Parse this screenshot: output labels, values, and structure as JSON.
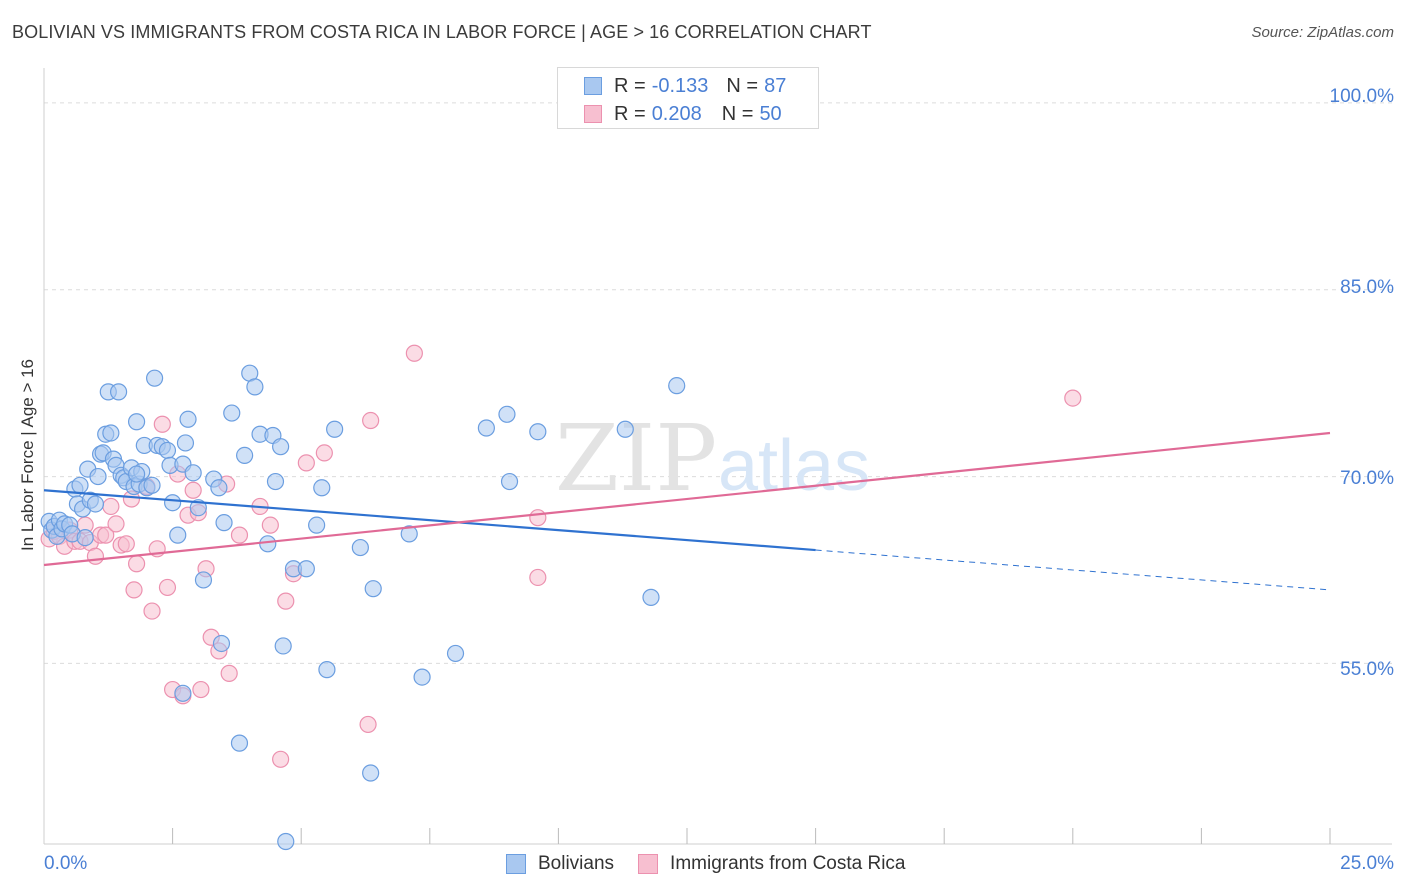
{
  "title": "BOLIVIAN VS IMMIGRANTS FROM COSTA RICA IN LABOR FORCE | AGE > 16 CORRELATION CHART",
  "source": "Source: ZipAtlas.com",
  "watermark": {
    "zip": "ZIP",
    "atlas": "atlas"
  },
  "legend": {
    "row1": {
      "r_label": "R =",
      "r_value": "-0.133",
      "n_label": "N =",
      "n_value": "87"
    },
    "row2": {
      "r_label": "R =",
      "r_value": "0.208",
      "n_label": "N =",
      "n_value": "50"
    }
  },
  "bottom_legend": {
    "s1": "Bolivians",
    "s2": "Immigrants from Costa Rica"
  },
  "colors": {
    "bolivians_fill": "#a9c8f0",
    "bolivians_stroke": "#6b9ee0",
    "bolivians_line": "#2f72d0",
    "costarica_fill": "#f7bfd0",
    "costarica_stroke": "#ec91af",
    "costarica_line": "#e06a96",
    "tick_text": "#4a7fd4",
    "grid": "#dcdcdc"
  },
  "chart_data": {
    "type": "scatter",
    "title": "BOLIVIAN VS IMMIGRANTS FROM COSTA RICA IN LABOR FORCE | AGE > 16 CORRELATION CHART",
    "xlabel": "",
    "ylabel": "In Labor Force | Age > 16",
    "xlim": [
      0,
      25
    ],
    "ylim": [
      40.5,
      102
    ],
    "x_tick_labels": [
      "0.0%",
      "25.0%"
    ],
    "y_ticks": [
      100,
      85,
      70,
      55
    ],
    "y_tick_labels": [
      "100.0%",
      "85.0%",
      "70.0%",
      "55.0%"
    ],
    "grid": true,
    "legend_placement": "top-center",
    "series": [
      {
        "name": "Bolivians",
        "r": -0.133,
        "n": 87,
        "trend": {
          "x0": 0,
          "y0": 68.9,
          "x1": 15,
          "y1": 64.1,
          "dash_x1": 25,
          "dash_y1": 60.9
        },
        "points": [
          [
            0.1,
            66.4
          ],
          [
            0.15,
            65.7
          ],
          [
            0.2,
            66.0
          ],
          [
            0.25,
            65.2
          ],
          [
            0.3,
            66.5
          ],
          [
            0.35,
            65.8
          ],
          [
            0.4,
            66.2
          ],
          [
            0.5,
            66.1
          ],
          [
            0.55,
            65.4
          ],
          [
            0.6,
            69.0
          ],
          [
            0.65,
            67.8
          ],
          [
            0.7,
            69.3
          ],
          [
            0.75,
            67.4
          ],
          [
            0.8,
            65.1
          ],
          [
            0.85,
            70.6
          ],
          [
            0.9,
            68.1
          ],
          [
            1.0,
            67.8
          ],
          [
            1.05,
            70.0
          ],
          [
            1.1,
            71.8
          ],
          [
            1.15,
            71.9
          ],
          [
            1.2,
            73.4
          ],
          [
            1.25,
            76.8
          ],
          [
            1.3,
            73.5
          ],
          [
            1.35,
            71.4
          ],
          [
            1.4,
            70.9
          ],
          [
            1.45,
            76.8
          ],
          [
            1.5,
            70.1
          ],
          [
            1.55,
            69.9
          ],
          [
            1.6,
            69.6
          ],
          [
            1.7,
            70.7
          ],
          [
            1.75,
            69.2
          ],
          [
            1.8,
            74.4
          ],
          [
            1.85,
            69.4
          ],
          [
            1.9,
            70.4
          ],
          [
            1.95,
            72.5
          ],
          [
            2.0,
            69.1
          ],
          [
            2.1,
            69.3
          ],
          [
            2.15,
            77.9
          ],
          [
            2.2,
            72.5
          ],
          [
            2.3,
            72.4
          ],
          [
            2.4,
            72.1
          ],
          [
            2.45,
            70.9
          ],
          [
            2.5,
            67.9
          ],
          [
            2.6,
            65.3
          ],
          [
            2.7,
            71.0
          ],
          [
            2.75,
            72.7
          ],
          [
            2.8,
            74.6
          ],
          [
            2.9,
            70.3
          ],
          [
            3.0,
            67.5
          ],
          [
            3.1,
            61.7
          ],
          [
            3.3,
            69.8
          ],
          [
            3.4,
            69.1
          ],
          [
            3.45,
            56.6
          ],
          [
            3.5,
            66.3
          ],
          [
            3.65,
            75.1
          ],
          [
            3.8,
            48.6
          ],
          [
            3.9,
            71.7
          ],
          [
            4.0,
            78.3
          ],
          [
            4.1,
            77.2
          ],
          [
            4.2,
            73.4
          ],
          [
            4.35,
            64.6
          ],
          [
            4.45,
            73.3
          ],
          [
            4.5,
            69.6
          ],
          [
            4.6,
            72.4
          ],
          [
            4.65,
            56.4
          ],
          [
            4.85,
            62.6
          ],
          [
            5.1,
            62.6
          ],
          [
            5.3,
            66.1
          ],
          [
            5.4,
            69.1
          ],
          [
            5.5,
            54.5
          ],
          [
            5.65,
            73.8
          ],
          [
            6.15,
            64.3
          ],
          [
            6.35,
            46.2
          ],
          [
            6.4,
            61.0
          ],
          [
            7.1,
            65.4
          ],
          [
            7.35,
            53.9
          ],
          [
            8.0,
            55.8
          ],
          [
            8.6,
            73.9
          ],
          [
            9.0,
            75.0
          ],
          [
            9.05,
            69.6
          ],
          [
            9.6,
            73.6
          ],
          [
            11.3,
            73.8
          ],
          [
            11.8,
            60.3
          ],
          [
            12.3,
            77.3
          ],
          [
            4.7,
            40.7
          ],
          [
            2.7,
            52.6
          ],
          [
            1.8,
            70.2
          ]
        ]
      },
      {
        "name": "Immigrants from Costa Rica",
        "r": 0.208,
        "n": 50,
        "trend": {
          "x0": 0,
          "y0": 62.9,
          "x1": 25,
          "y1": 73.5
        },
        "points": [
          [
            0.1,
            65.0
          ],
          [
            0.2,
            65.6
          ],
          [
            0.3,
            65.2
          ],
          [
            0.4,
            64.4
          ],
          [
            0.5,
            65.7
          ],
          [
            0.6,
            64.8
          ],
          [
            0.7,
            64.8
          ],
          [
            0.8,
            66.1
          ],
          [
            0.9,
            64.7
          ],
          [
            1.0,
            63.6
          ],
          [
            1.1,
            65.3
          ],
          [
            1.2,
            65.3
          ],
          [
            1.3,
            67.6
          ],
          [
            1.4,
            66.2
          ],
          [
            1.5,
            64.5
          ],
          [
            1.6,
            64.6
          ],
          [
            1.7,
            68.2
          ],
          [
            1.75,
            60.9
          ],
          [
            1.8,
            63.0
          ],
          [
            2.0,
            69.2
          ],
          [
            2.1,
            59.2
          ],
          [
            2.2,
            64.2
          ],
          [
            2.3,
            74.2
          ],
          [
            2.4,
            61.1
          ],
          [
            2.5,
            52.9
          ],
          [
            2.6,
            70.2
          ],
          [
            2.7,
            52.4
          ],
          [
            2.8,
            66.9
          ],
          [
            2.9,
            68.9
          ],
          [
            3.0,
            67.1
          ],
          [
            3.05,
            52.9
          ],
          [
            3.15,
            62.6
          ],
          [
            3.25,
            57.1
          ],
          [
            3.4,
            56.0
          ],
          [
            3.55,
            69.4
          ],
          [
            3.6,
            54.2
          ],
          [
            3.8,
            65.3
          ],
          [
            4.2,
            67.6
          ],
          [
            4.4,
            66.1
          ],
          [
            4.6,
            47.3
          ],
          [
            4.7,
            60.0
          ],
          [
            4.85,
            62.2
          ],
          [
            5.1,
            71.1
          ],
          [
            5.45,
            71.9
          ],
          [
            6.3,
            50.1
          ],
          [
            6.35,
            74.5
          ],
          [
            7.2,
            79.9
          ],
          [
            9.6,
            66.7
          ],
          [
            9.6,
            61.9
          ],
          [
            20.0,
            76.3
          ]
        ]
      }
    ]
  }
}
